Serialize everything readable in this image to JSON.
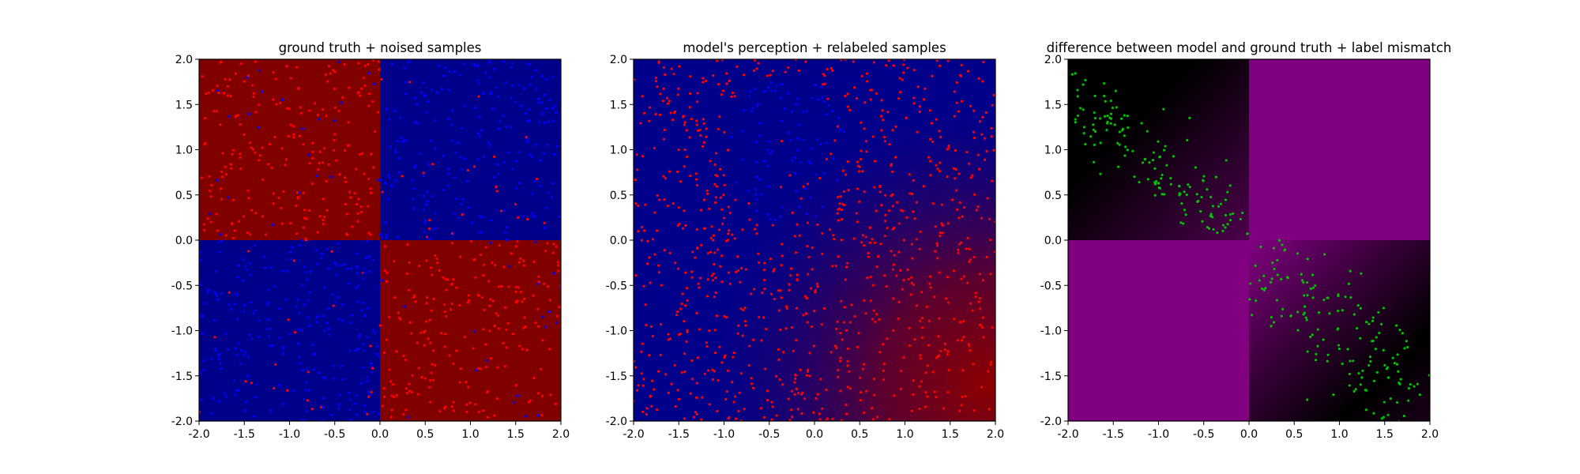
{
  "chart_data": [
    {
      "type": "heatmap",
      "title": "ground truth + noised samples",
      "xlim": [
        -2.0,
        2.0
      ],
      "ylim": [
        -2.0,
        2.0
      ],
      "x_ticks": [
        "-2.0",
        "-1.5",
        "-1.0",
        "-0.5",
        "0.0",
        "0.5",
        "1.0",
        "1.5",
        "2.0"
      ],
      "y_ticks": [
        "-2.0",
        "-1.5",
        "-1.0",
        "-0.5",
        "0.0",
        "0.5",
        "1.0",
        "1.5",
        "2.0"
      ],
      "grid": false,
      "background": "quadrant checkerboard: x*y<0 red, x*y>0 blue",
      "region_colors": {
        "class_1": "#800000",
        "class_0": "#00008b"
      },
      "scatter": {
        "series": [
          "red",
          "blue"
        ],
        "colors": [
          "#ff0000",
          "#0000ff"
        ],
        "approx_points": 1000,
        "distribution": "uniform over [-2,2]x[-2,2], labels noised"
      }
    },
    {
      "type": "heatmap",
      "title": "model's perception + relabeled samples",
      "xlim": [
        -2.0,
        2.0
      ],
      "ylim": [
        -2.0,
        2.0
      ],
      "x_ticks": [
        "-2.0",
        "-1.5",
        "-1.0",
        "-0.5",
        "0.0",
        "0.5",
        "1.0",
        "1.5",
        "2.0"
      ],
      "y_ticks": [
        "-2.0",
        "-1.5",
        "-1.0",
        "-0.5",
        "0.0",
        "0.5",
        "1.0",
        "1.5",
        "2.0"
      ],
      "grid": false,
      "background": "model prediction: mostly blue, red region toward lower-right",
      "region_colors": {
        "class_1": "#800000",
        "class_0": "#00008b"
      },
      "scatter": {
        "series": [
          "red",
          "blue"
        ],
        "colors": [
          "#ff0000",
          "#0000ff"
        ],
        "approx_points": 1000,
        "distribution": "mostly red, blue cluster near (-0.3, 1.0)"
      }
    },
    {
      "type": "heatmap",
      "title": "difference between model and ground truth + label mismatch",
      "xlim": [
        -2.0,
        2.0
      ],
      "ylim": [
        -2.0,
        2.0
      ],
      "x_ticks": [
        "-2.0",
        "-1.5",
        "-1.0",
        "-0.5",
        "0.0",
        "0.5",
        "1.0",
        "1.5",
        "2.0"
      ],
      "y_ticks": [
        "-2.0",
        "-1.5",
        "-1.0",
        "-0.5",
        "0.0",
        "0.5",
        "1.0",
        "1.5",
        "2.0"
      ],
      "grid": false,
      "background": "difference map: purple where model disagrees, black where it agrees",
      "region_colors": {
        "difference": "#800080",
        "agreement": "#000000"
      },
      "scatter": {
        "series": [
          "mismatch"
        ],
        "colors": [
          "#00c000"
        ],
        "approx_points": 320,
        "distribution": "points along the anti-diagonal in upper-left and lower-right quadrants"
      }
    }
  ]
}
